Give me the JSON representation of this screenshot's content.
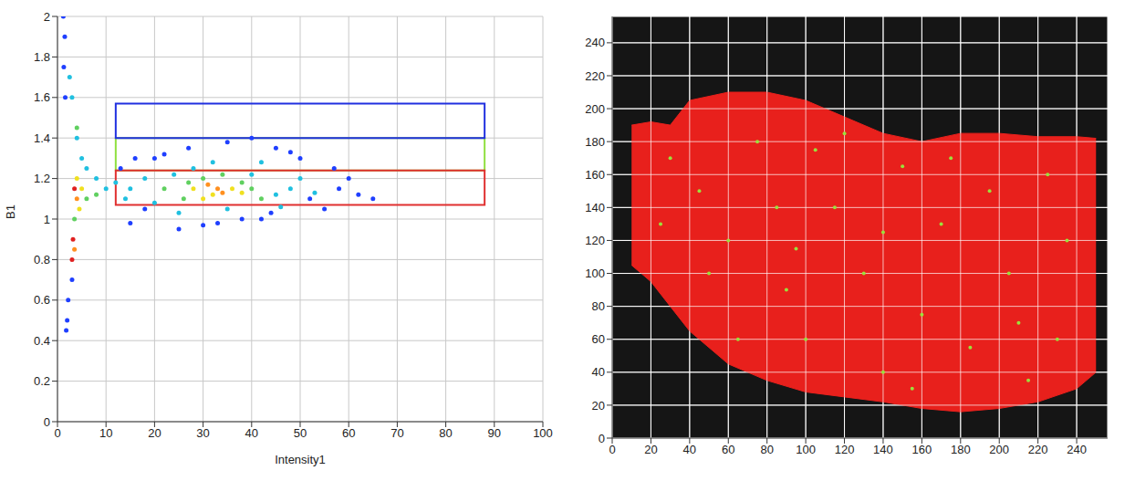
{
  "chart_data": [
    {
      "type": "scatter",
      "x_label": "Intensity1",
      "y_label": "B1",
      "xlim": [
        0,
        100
      ],
      "xticks": [
        0,
        10,
        20,
        30,
        40,
        50,
        60,
        70,
        80,
        90,
        100
      ],
      "ylim": [
        0,
        2
      ],
      "yticks": [
        0,
        0.2,
        0.4,
        0.6,
        0.8,
        1,
        1.2,
        1.4,
        1.6,
        1.8,
        2
      ],
      "grid": true,
      "series": [
        {
          "color": "#1f3fff",
          "x": [
            13,
            15,
            20,
            25,
            35,
            42,
            50,
            55,
            60,
            65,
            48,
            30,
            18,
            1.5,
            2,
            1.8,
            1.2,
            3,
            57,
            45,
            22,
            38,
            52,
            27,
            33,
            44,
            16,
            58,
            62,
            40,
            1.3,
            1.6,
            2.2
          ],
          "values": [
            1.25,
            0.98,
            1.3,
            0.95,
            1.38,
            1.0,
            1.3,
            1.05,
            1.2,
            1.1,
            1.33,
            0.97,
            1.05,
            1.9,
            0.5,
            0.45,
            2.0,
            0.7,
            1.25,
            1.35,
            1.32,
            1.0,
            1.1,
            1.35,
            0.98,
            1.03,
            1.3,
            1.15,
            1.12,
            1.4,
            1.75,
            1.6,
            0.6
          ]
        },
        {
          "color": "#20c0e0",
          "x": [
            15,
            18,
            20,
            28,
            40,
            45,
            48,
            35,
            25,
            42,
            4,
            5,
            6,
            8,
            10,
            3,
            2.5,
            50,
            53,
            32,
            24,
            46,
            14,
            12
          ],
          "values": [
            1.15,
            1.2,
            1.08,
            1.25,
            1.22,
            1.12,
            1.15,
            1.05,
            1.03,
            1.28,
            1.4,
            1.3,
            1.25,
            1.2,
            1.15,
            1.6,
            1.7,
            1.2,
            1.13,
            1.28,
            1.22,
            1.06,
            1.1,
            1.18
          ]
        },
        {
          "color": "#60d060",
          "x": [
            22,
            26,
            30,
            38,
            42,
            6,
            8,
            4,
            3.5,
            34,
            27,
            40
          ],
          "values": [
            1.15,
            1.1,
            1.2,
            1.18,
            1.1,
            1.1,
            1.12,
            1.45,
            1.0,
            1.22,
            1.18,
            1.15
          ]
        },
        {
          "color": "#f0e020",
          "x": [
            28,
            32,
            36,
            5,
            4,
            4.5,
            30,
            38
          ],
          "values": [
            1.15,
            1.12,
            1.15,
            1.15,
            1.2,
            1.05,
            1.1,
            1.13
          ]
        },
        {
          "color": "#ff9020",
          "x": [
            31,
            34,
            4,
            3.5,
            33
          ],
          "values": [
            1.17,
            1.13,
            1.1,
            0.85,
            1.15
          ]
        },
        {
          "color": "#e02020",
          "x": [
            3.5,
            3.2,
            3
          ],
          "values": [
            1.15,
            0.9,
            0.8
          ]
        }
      ],
      "rectangles": [
        {
          "color": "#90e040",
          "x": [
            12,
            88
          ],
          "y": [
            1.24,
            1.4
          ]
        },
        {
          "color": "#e03030",
          "x": [
            12,
            88
          ],
          "y": [
            1.07,
            1.24
          ]
        },
        {
          "color": "#2030e0",
          "x": [
            12,
            88
          ],
          "y": [
            1.4,
            1.57
          ]
        }
      ]
    },
    {
      "type": "image",
      "xlim": [
        0,
        256
      ],
      "xticks": [
        0,
        20,
        40,
        60,
        80,
        100,
        120,
        140,
        160,
        180,
        200,
        220,
        240
      ],
      "ylim": [
        0,
        256
      ],
      "yticks": [
        0,
        20,
        40,
        60,
        80,
        100,
        120,
        140,
        160,
        180,
        200,
        220,
        240
      ],
      "grid": true,
      "region": {
        "color": "#e8201c",
        "x": [
          10,
          20,
          30,
          40,
          60,
          80,
          100,
          120,
          140,
          160,
          180,
          200,
          220,
          240,
          250
        ],
        "low": [
          105,
          95,
          80,
          65,
          45,
          35,
          28,
          25,
          22,
          18,
          16,
          18,
          22,
          30,
          40
        ],
        "high": [
          190,
          192,
          190,
          205,
          210,
          210,
          205,
          195,
          185,
          180,
          185,
          185,
          183,
          183,
          182
        ]
      },
      "highlights": {
        "color": "#9be03c",
        "x": [
          30,
          45,
          60,
          75,
          90,
          100,
          115,
          130,
          140,
          150,
          160,
          170,
          185,
          195,
          205,
          215,
          225,
          235,
          120,
          65,
          50,
          85,
          175,
          140,
          105,
          25,
          210,
          155,
          230,
          95
        ],
        "y": [
          170,
          150,
          120,
          180,
          90,
          60,
          140,
          100,
          40,
          165,
          75,
          130,
          55,
          150,
          100,
          35,
          160,
          120,
          185,
          60,
          100,
          140,
          170,
          125,
          175,
          130,
          70,
          30,
          60,
          115
        ]
      }
    }
  ]
}
